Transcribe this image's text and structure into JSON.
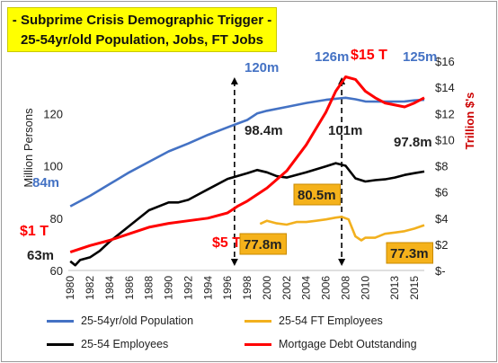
{
  "chart_data": {
    "type": "line",
    "title_lines": [
      "- Subprime Crisis Demographic Trigger -",
      "25-54yr/old Population, Jobs, FT Jobs"
    ],
    "left_axis": {
      "label": "Million Persons",
      "ticks": [
        "60",
        "80",
        "100",
        "120"
      ],
      "range": [
        60,
        140
      ]
    },
    "right_axis": {
      "label": "Trillion $'s",
      "ticks": [
        "$-",
        "$2",
        "$4",
        "$6",
        "$8",
        "$10",
        "$12",
        "$14",
        "$16"
      ],
      "range": [
        0,
        16
      ]
    },
    "x_ticks": [
      "1980",
      "1982",
      "1984",
      "1986",
      "1988",
      "1990",
      "1992",
      "1994",
      "1996",
      "1998",
      "2000",
      "2002",
      "2004",
      "2006",
      "2008",
      "2010",
      "2013",
      "2015"
    ],
    "x_range": [
      1979.8,
      2016
    ],
    "series": [
      {
        "name": "25-54yr/old Population",
        "color": "#4472c4",
        "axis": "left",
        "x": [
          1980,
          1982,
          1984,
          1986,
          1988,
          1990,
          1992,
          1994,
          1996,
          1998,
          1999,
          2000,
          2002,
          2004,
          2006,
          2007,
          2008,
          2009,
          2010,
          2012,
          2014,
          2015,
          2016
        ],
        "y": [
          84.5,
          88.5,
          93,
          97.5,
          101.5,
          105.5,
          108.5,
          111.8,
          114.7,
          117.5,
          120,
          121,
          122.5,
          124,
          125.2,
          125.6,
          126,
          125.4,
          124.6,
          124.5,
          124.6,
          125,
          125.2
        ]
      },
      {
        "name": "25-54 Employees",
        "color": "#000000",
        "axis": "left",
        "x": [
          1980,
          1980.5,
          1981,
          1982,
          1983,
          1984,
          1986,
          1988,
          1990,
          1991,
          1992,
          1993,
          1994,
          1996,
          1998,
          1999,
          2000,
          2001,
          2002,
          2004,
          2006,
          2007,
          2008,
          2009,
          2010,
          2011,
          2012,
          2013,
          2014,
          2015,
          2016
        ],
        "y": [
          63.5,
          62,
          64,
          65,
          67.5,
          71,
          77,
          83,
          86,
          86,
          87,
          89,
          91,
          95,
          97.2,
          98.4,
          97.5,
          96,
          95.5,
          97.5,
          99.8,
          101,
          100,
          95.2,
          94,
          94.5,
          94.8,
          95.5,
          96.5,
          97.2,
          97.8
        ]
      },
      {
        "name": "25-54 FT Employees",
        "color": "#f2b01e",
        "axis": "left",
        "x": [
          1999.3,
          2000,
          2001,
          2002,
          2003,
          2004,
          2005,
          2006,
          2007,
          2007.6,
          2008.3,
          2009,
          2009.6,
          2010,
          2011,
          2012,
          2013,
          2014,
          2015,
          2016
        ],
        "y": [
          77.8,
          79,
          78,
          77.5,
          78.5,
          78.5,
          79,
          79.5,
          80.2,
          80.5,
          79.5,
          73,
          71.5,
          72.5,
          72.5,
          74,
          74.5,
          75,
          76,
          77.3
        ]
      },
      {
        "name": "Mortgage Debt Outstanding",
        "color": "#ff0000",
        "axis": "right",
        "x": [
          1980,
          1982,
          1984,
          1986,
          1988,
          1990,
          1992,
          1994,
          1996,
          1997,
          1998,
          2000,
          2002,
          2004,
          2006,
          2007,
          2008,
          2009,
          2010,
          2011,
          2012,
          2014,
          2015,
          2016
        ],
        "y": [
          1.4,
          1.9,
          2.3,
          2.8,
          3.3,
          3.6,
          3.8,
          4.0,
          4.4,
          4.9,
          5.3,
          6.3,
          7.6,
          9.6,
          12.1,
          13.7,
          14.8,
          14.6,
          13.7,
          13.2,
          12.8,
          12.5,
          12.8,
          13.2
        ]
      }
    ],
    "annotations": [
      {
        "text": "84m",
        "color": "#4472c4"
      },
      {
        "text": "120m",
        "color": "#4472c4"
      },
      {
        "text": "126m",
        "color": "#4472c4"
      },
      {
        "text": "125m",
        "color": "#4472c4"
      },
      {
        "text": "$15 T",
        "color": "#ff0000"
      },
      {
        "text": "$5 T",
        "color": "#ff0000"
      },
      {
        "text": "$1 T",
        "color": "#ff0000"
      },
      {
        "text": "63m",
        "color": "#222222"
      },
      {
        "text": "98.4m",
        "color": "#222222"
      },
      {
        "text": "101m",
        "color": "#222222"
      },
      {
        "text": "97.8m",
        "color": "#222222"
      },
      {
        "text": "80.5m",
        "color": "#222222",
        "boxed": true
      },
      {
        "text": "77.8m",
        "color": "#222222",
        "boxed": true
      },
      {
        "text": "77.3m",
        "color": "#222222",
        "boxed": true
      }
    ],
    "markers": [
      {
        "year": 1996.7
      },
      {
        "year": 2007.6
      }
    ],
    "grid": false,
    "legend_position": "bottom"
  }
}
